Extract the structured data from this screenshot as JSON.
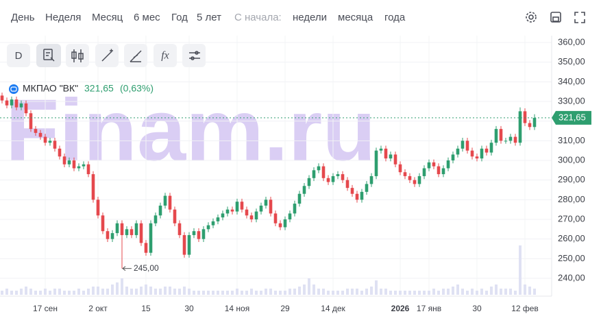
{
  "menu": {
    "periods": [
      "День",
      "Неделя",
      "Месяц",
      "6 мес",
      "Год",
      "5 лет"
    ],
    "since_label": "С начала:",
    "since": [
      "недели",
      "месяца",
      "года"
    ]
  },
  "toolbar": [
    "D",
    "fx"
  ],
  "chart_data": {
    "type": "candlestick",
    "title": "МКПАО \"ВК\"",
    "watermark": "Finam.ru",
    "last_price": {
      "value": 321.65,
      "label": "321,65"
    },
    "change": {
      "value": 0.63,
      "label": "(0,63%)"
    },
    "min_marker": {
      "value": 245,
      "label": "245,00"
    },
    "up_color": "#2e9e6f",
    "down_color": "#e5484d",
    "volume_color": "#dfe1f3",
    "grid": true,
    "ylim": [
      236,
      364
    ],
    "yticks": [
      {
        "value": 240,
        "label": "240,00"
      },
      {
        "value": 250,
        "label": "250,00"
      },
      {
        "value": 260,
        "label": "260,00"
      },
      {
        "value": 270,
        "label": "270,00"
      },
      {
        "value": 280,
        "label": "280,00"
      },
      {
        "value": 290,
        "label": "290,00"
      },
      {
        "value": 300,
        "label": "300,00"
      },
      {
        "value": 310,
        "label": "310,00"
      },
      {
        "value": 320,
        "label": "320,00"
      },
      {
        "value": 330,
        "label": "330,00"
      },
      {
        "value": 340,
        "label": "340,00"
      },
      {
        "value": 350,
        "label": "350,00"
      },
      {
        "value": 360,
        "label": "360,00"
      }
    ],
    "categories": [
      null,
      null,
      null,
      null,
      null,
      null,
      null,
      null,
      null,
      "17 сен",
      null,
      null,
      null,
      null,
      null,
      null,
      null,
      null,
      null,
      null,
      "2 окт",
      null,
      null,
      null,
      null,
      null,
      null,
      null,
      null,
      null,
      "15",
      null,
      null,
      null,
      null,
      null,
      null,
      null,
      null,
      "30",
      null,
      null,
      null,
      null,
      null,
      null,
      null,
      null,
      null,
      "14 ноя",
      null,
      null,
      null,
      null,
      null,
      null,
      null,
      null,
      null,
      "29",
      null,
      null,
      null,
      null,
      null,
      null,
      null,
      null,
      null,
      "14 дек",
      null,
      null,
      null,
      null,
      null,
      null,
      null,
      null,
      null,
      null,
      null,
      null,
      null,
      "2026",
      null,
      null,
      null,
      null,
      null,
      "17 янв",
      null,
      null,
      null,
      null,
      null,
      null,
      null,
      null,
      null,
      "30",
      null,
      null,
      null,
      null,
      null,
      null,
      null,
      null,
      null,
      "12 фев",
      null,
      null
    ],
    "open": [
      333,
      330.5,
      328,
      331,
      327,
      329,
      324,
      316,
      314,
      312,
      309,
      310,
      306,
      302,
      298,
      300,
      296,
      297,
      298,
      293,
      280,
      272,
      264,
      260,
      263,
      268,
      262,
      265,
      262,
      268,
      258,
      253,
      268,
      272,
      277,
      282,
      275,
      268,
      262,
      252,
      262,
      264,
      260,
      265,
      267,
      269,
      271,
      273,
      275,
      274,
      279,
      275,
      272,
      270,
      274,
      277,
      280,
      273,
      268,
      266,
      270,
      273,
      278,
      283,
      287,
      291,
      295,
      297,
      291,
      289,
      292,
      293,
      290,
      286,
      283,
      280,
      284,
      288,
      292,
      305,
      306,
      301,
      303,
      298,
      294,
      292,
      290,
      288,
      292,
      296,
      299,
      297,
      293,
      296,
      300,
      303,
      306,
      310,
      305,
      302,
      301,
      306,
      304,
      309,
      316,
      310,
      310,
      312,
      309,
      325,
      319,
      317
    ],
    "high": [
      334.5,
      332,
      332.5,
      332.5,
      330.5,
      330.5,
      325.5,
      317.5,
      315.5,
      313.5,
      311.5,
      311.5,
      307.5,
      303.5,
      301.5,
      301.5,
      298.5,
      299.5,
      299.5,
      294.5,
      281.5,
      273.5,
      265.5,
      264.5,
      269.5,
      269.5,
      266.5,
      266.5,
      269.5,
      269.5,
      259.5,
      269.5,
      273.5,
      278.5,
      283.5,
      283.5,
      276.5,
      269.5,
      263.5,
      263.5,
      265.5,
      265.5,
      266.5,
      268.5,
      270.5,
      272.5,
      274.5,
      276.5,
      276.5,
      280.5,
      280.5,
      276.5,
      273.5,
      275.5,
      278.5,
      281.5,
      281.5,
      274.5,
      269.5,
      271.5,
      274.5,
      279.5,
      284.5,
      288.5,
      292.5,
      296.5,
      298.5,
      298.5,
      292.5,
      293.5,
      294.5,
      294.5,
      291.5,
      287.5,
      284.5,
      285.5,
      289.5,
      293.5,
      306.5,
      307.5,
      307.5,
      304.5,
      304.5,
      299.5,
      295.5,
      293.5,
      291.5,
      293.5,
      297.5,
      300.5,
      300.5,
      298.5,
      297.5,
      301.5,
      304.5,
      307.5,
      311.5,
      311.5,
      306.5,
      303.5,
      307.5,
      307.5,
      310.5,
      317.5,
      317.5,
      311.5,
      313.5,
      313.5,
      327,
      326.5,
      320.5,
      323.5
    ],
    "low": [
      329,
      326.5,
      326.5,
      325.5,
      325.5,
      322.5,
      314.5,
      312.5,
      310.5,
      307.5,
      307.5,
      304.5,
      300.5,
      296.5,
      296.5,
      294.5,
      294.5,
      295.5,
      291.5,
      278.5,
      270.5,
      262.5,
      258.5,
      258.5,
      261.5,
      245,
      260.5,
      260.5,
      260.5,
      256.5,
      251.5,
      251.5,
      266.5,
      270.5,
      275.5,
      273.5,
      266.5,
      260.5,
      250.5,
      250.5,
      260.5,
      258.5,
      258.5,
      263.5,
      265.5,
      267.5,
      269.5,
      271.5,
      272.5,
      272.5,
      273.5,
      270.5,
      268.5,
      268.5,
      272.5,
      275.5,
      271.5,
      266.5,
      264.5,
      264.5,
      268.5,
      271.5,
      276.5,
      281.5,
      285.5,
      289.5,
      293.5,
      289.5,
      287.5,
      287.5,
      290.5,
      288.5,
      284.5,
      281.5,
      278.5,
      278.5,
      282.5,
      286.5,
      290.5,
      303.5,
      299.5,
      299.5,
      296.5,
      292.5,
      290.5,
      288.5,
      286.5,
      286.5,
      290.5,
      294.5,
      295.5,
      291.5,
      291.5,
      294.5,
      298.5,
      301.5,
      304.5,
      303.5,
      300.5,
      299.5,
      299.5,
      302.5,
      302.5,
      307.5,
      308.5,
      308.5,
      308.5,
      307.5,
      307.5,
      317.5,
      315.5,
      315.5
    ],
    "close": [
      330.5,
      328,
      331,
      327,
      329,
      324,
      316,
      314,
      312,
      309,
      310,
      306,
      302,
      298,
      300,
      296,
      297,
      298,
      293,
      280,
      272,
      264,
      260,
      263,
      268,
      262,
      265,
      262,
      268,
      258,
      253,
      268,
      272,
      277,
      282,
      275,
      268,
      262,
      252,
      262,
      264,
      260,
      265,
      267,
      269,
      271,
      273,
      275,
      274,
      279,
      275,
      272,
      270,
      274,
      277,
      280,
      273,
      268,
      266,
      270,
      273,
      278,
      283,
      287,
      291,
      295,
      297,
      291,
      289,
      292,
      293,
      290,
      286,
      283,
      280,
      284,
      288,
      292,
      305,
      306,
      301,
      303,
      298,
      294,
      292,
      290,
      288,
      292,
      296,
      299,
      297,
      293,
      296,
      300,
      303,
      306,
      310,
      305,
      302,
      301,
      306,
      304,
      309,
      316,
      310,
      310,
      312,
      309,
      325,
      319,
      317,
      321.65
    ],
    "volume": [
      2,
      3,
      2,
      2,
      3,
      4,
      3,
      2,
      2,
      3,
      2,
      3,
      3,
      2,
      2,
      2,
      3,
      2,
      3,
      4,
      4,
      3,
      3,
      5,
      6,
      8,
      4,
      3,
      3,
      4,
      5,
      4,
      3,
      3,
      4,
      4,
      3,
      3,
      4,
      3,
      2,
      2,
      2,
      2,
      2,
      2,
      2,
      2,
      2,
      3,
      2,
      2,
      3,
      2,
      2,
      3,
      3,
      2,
      2,
      2,
      3,
      3,
      4,
      5,
      8,
      5,
      3,
      3,
      2,
      2,
      2,
      2,
      3,
      3,
      3,
      2,
      3,
      4,
      7,
      3,
      3,
      2,
      2,
      2,
      2,
      2,
      2,
      2,
      2,
      2,
      3,
      2,
      3,
      3,
      4,
      5,
      3,
      2,
      3,
      2,
      3,
      2,
      4,
      5,
      3,
      3,
      3,
      2,
      24,
      5,
      4,
      3
    ]
  }
}
